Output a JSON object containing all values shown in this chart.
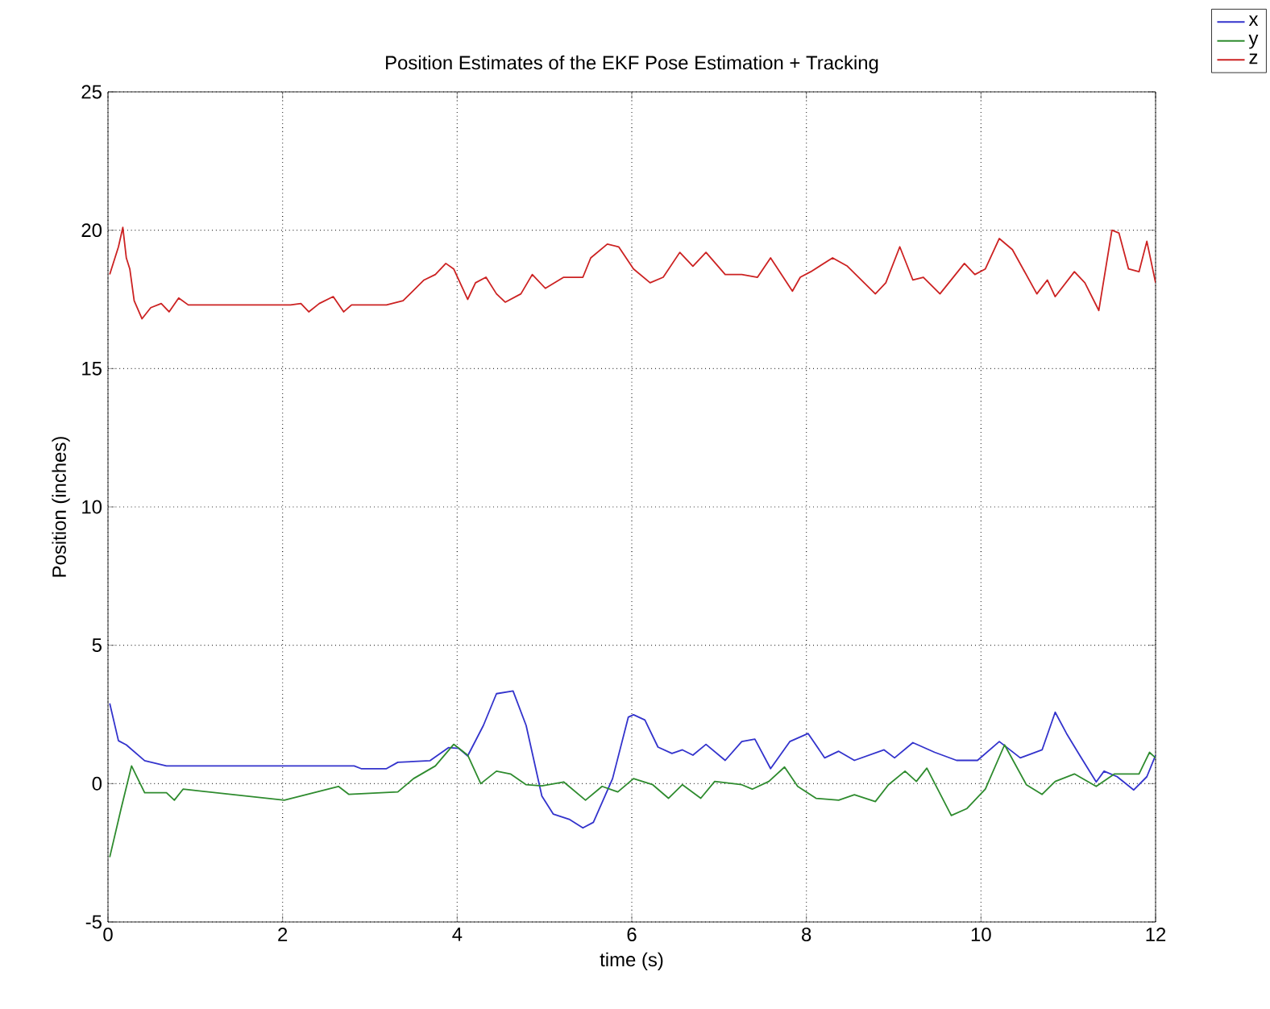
{
  "chart_data": {
    "type": "line",
    "title": "Position Estimates of the EKF Pose Estimation + Tracking",
    "xlabel": "time (s)",
    "ylabel": "Position (inches)",
    "xlim": [
      0,
      12
    ],
    "ylim": [
      -5,
      25
    ],
    "xticks": [
      0,
      2,
      4,
      6,
      8,
      10,
      12
    ],
    "yticks": [
      -5,
      0,
      5,
      10,
      15,
      20,
      25
    ],
    "grid": true,
    "legend": "top right",
    "series": [
      {
        "name": "x",
        "color": "#3333cc",
        "x": [
          0.02,
          0.12,
          0.21,
          0.42,
          0.67,
          1.1,
          2.82,
          2.9,
          3.19,
          3.32,
          3.69,
          3.9,
          4.02,
          4.12,
          4.3,
          4.45,
          4.64,
          4.79,
          4.97,
          5.1,
          5.29,
          5.44,
          5.56,
          5.78,
          5.96,
          6.02,
          6.15,
          6.3,
          6.46,
          6.58,
          6.7,
          6.85,
          7.07,
          7.26,
          7.41,
          7.59,
          7.81,
          8.02,
          8.21,
          8.37,
          8.55,
          8.89,
          9.01,
          9.22,
          9.47,
          9.72,
          9.96,
          10.21,
          10.45,
          10.7,
          10.85,
          10.98,
          11.13,
          11.32,
          11.41,
          11.56,
          11.75,
          11.9,
          12.0
        ],
        "values": [
          2.9,
          1.55,
          1.4,
          0.83,
          0.64,
          0.64,
          0.64,
          0.54,
          0.54,
          0.77,
          0.83,
          1.3,
          1.27,
          1.0,
          2.1,
          3.25,
          3.35,
          2.1,
          -0.45,
          -1.1,
          -1.3,
          -1.6,
          -1.4,
          0.18,
          2.4,
          2.49,
          2.3,
          1.32,
          1.09,
          1.22,
          1.03,
          1.42,
          0.84,
          1.52,
          1.61,
          0.54,
          1.52,
          1.81,
          0.93,
          1.17,
          0.84,
          1.22,
          0.93,
          1.48,
          1.13,
          0.84,
          0.84,
          1.52,
          0.93,
          1.22,
          2.58,
          1.81,
          1.03,
          0.06,
          0.45,
          0.25,
          -0.23,
          0.25,
          1.03
        ]
      },
      {
        "name": "y",
        "color": "#2e8b2e",
        "x": [
          0.02,
          0.15,
          0.27,
          0.42,
          0.67,
          0.76,
          0.86,
          2.02,
          2.64,
          2.76,
          3.32,
          3.5,
          3.75,
          3.96,
          4.12,
          4.27,
          4.45,
          4.61,
          4.79,
          4.97,
          5.22,
          5.47,
          5.66,
          5.84,
          6.02,
          6.24,
          6.42,
          6.58,
          6.79,
          6.95,
          7.26,
          7.38,
          7.57,
          7.75,
          7.9,
          8.11,
          8.37,
          8.55,
          8.79,
          8.94,
          9.13,
          9.26,
          9.38,
          9.66,
          9.84,
          10.05,
          10.27,
          10.52,
          10.7,
          10.85,
          11.07,
          11.32,
          11.53,
          11.81,
          11.93,
          12.0
        ],
        "values": [
          -2.66,
          -0.91,
          0.64,
          -0.33,
          -0.33,
          -0.6,
          -0.2,
          -0.6,
          -0.1,
          -0.39,
          -0.3,
          0.18,
          0.64,
          1.42,
          1.03,
          0.0,
          0.45,
          0.35,
          -0.04,
          -0.08,
          0.06,
          -0.6,
          -0.1,
          -0.3,
          0.18,
          -0.04,
          -0.53,
          -0.04,
          -0.53,
          0.08,
          -0.04,
          -0.2,
          0.08,
          0.6,
          -0.1,
          -0.53,
          -0.6,
          -0.4,
          -0.65,
          -0.04,
          0.45,
          0.08,
          0.56,
          -1.15,
          -0.9,
          -0.2,
          1.4,
          -0.04,
          -0.39,
          0.08,
          0.35,
          -0.1,
          0.35,
          0.35,
          1.13,
          0.93
        ]
      },
      {
        "name": "z",
        "color": "#cc2222",
        "x": [
          0.02,
          0.12,
          0.17,
          0.21,
          0.25,
          0.3,
          0.39,
          0.49,
          0.61,
          0.7,
          0.81,
          0.92,
          2.09,
          2.21,
          2.3,
          2.42,
          2.58,
          2.7,
          2.79,
          3.19,
          3.38,
          3.62,
          3.75,
          3.87,
          3.96,
          4.12,
          4.21,
          4.33,
          4.45,
          4.55,
          4.73,
          4.86,
          5.01,
          5.22,
          5.44,
          5.53,
          5.72,
          5.85,
          6.02,
          6.21,
          6.36,
          6.55,
          6.7,
          6.85,
          7.07,
          7.26,
          7.44,
          7.59,
          7.84,
          7.93,
          8.05,
          8.3,
          8.47,
          8.79,
          8.91,
          9.07,
          9.22,
          9.34,
          9.53,
          9.81,
          9.93,
          10.05,
          10.21,
          10.36,
          10.64,
          10.76,
          10.85,
          11.07,
          11.19,
          11.35,
          11.5,
          11.58,
          11.69,
          11.81,
          11.9,
          12.0
        ],
        "values": [
          18.4,
          19.4,
          20.1,
          19.0,
          18.6,
          17.45,
          16.8,
          17.2,
          17.35,
          17.05,
          17.55,
          17.3,
          17.3,
          17.35,
          17.05,
          17.35,
          17.6,
          17.05,
          17.3,
          17.3,
          17.45,
          18.2,
          18.4,
          18.8,
          18.6,
          17.5,
          18.1,
          18.3,
          17.7,
          17.4,
          17.7,
          18.4,
          17.9,
          18.3,
          18.3,
          19.0,
          19.5,
          19.4,
          18.6,
          18.1,
          18.3,
          19.2,
          18.7,
          19.2,
          18.4,
          18.4,
          18.3,
          19.0,
          17.8,
          18.3,
          18.5,
          19.0,
          18.7,
          17.7,
          18.1,
          19.4,
          18.2,
          18.3,
          17.7,
          18.8,
          18.4,
          18.6,
          19.7,
          19.3,
          17.7,
          18.2,
          17.6,
          18.5,
          18.1,
          17.1,
          20.0,
          19.9,
          18.6,
          18.5,
          19.6,
          18.1
        ]
      }
    ]
  }
}
